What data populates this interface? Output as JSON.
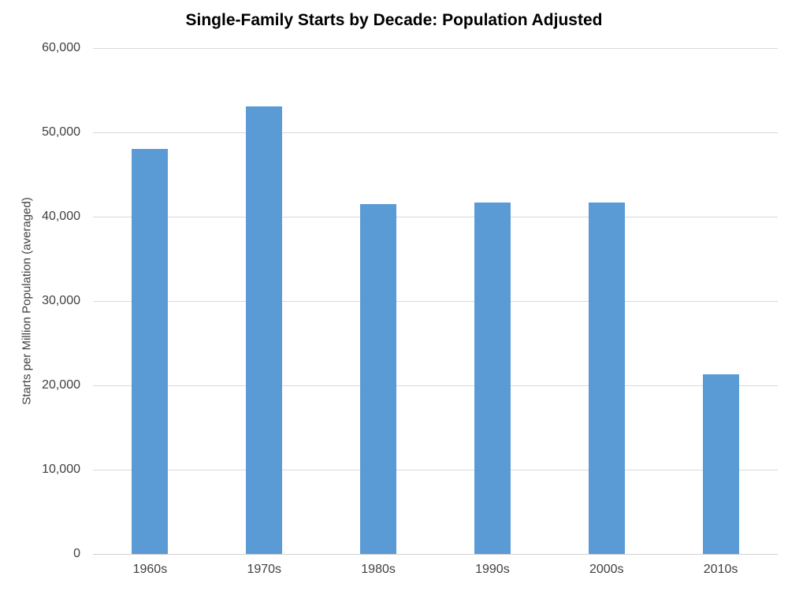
{
  "chart_data": {
    "type": "bar",
    "title": "Single-Family Starts by Decade: Population Adjusted",
    "categories": [
      "1960s",
      "1970s",
      "1980s",
      "1990s",
      "2000s",
      "2010s"
    ],
    "values": [
      48000,
      53100,
      41500,
      41700,
      41700,
      21300
    ],
    "xlabel": "",
    "ylabel": "Starts per Million Population (averaged)",
    "ylim": [
      0,
      60000
    ],
    "ytick_step": 10000,
    "ytick_labels": [
      "0",
      "10,000",
      "20,000",
      "30,000",
      "40,000",
      "50,000",
      "60,000"
    ],
    "grid": true,
    "legend": "none",
    "bar_color": "#5B9BD5",
    "gridline_color": "#D9D9D9",
    "axis_line_color": "#D0D0D0",
    "text_color": "#404040",
    "title_color": "#000000",
    "background_color": "#FFFFFF"
  }
}
